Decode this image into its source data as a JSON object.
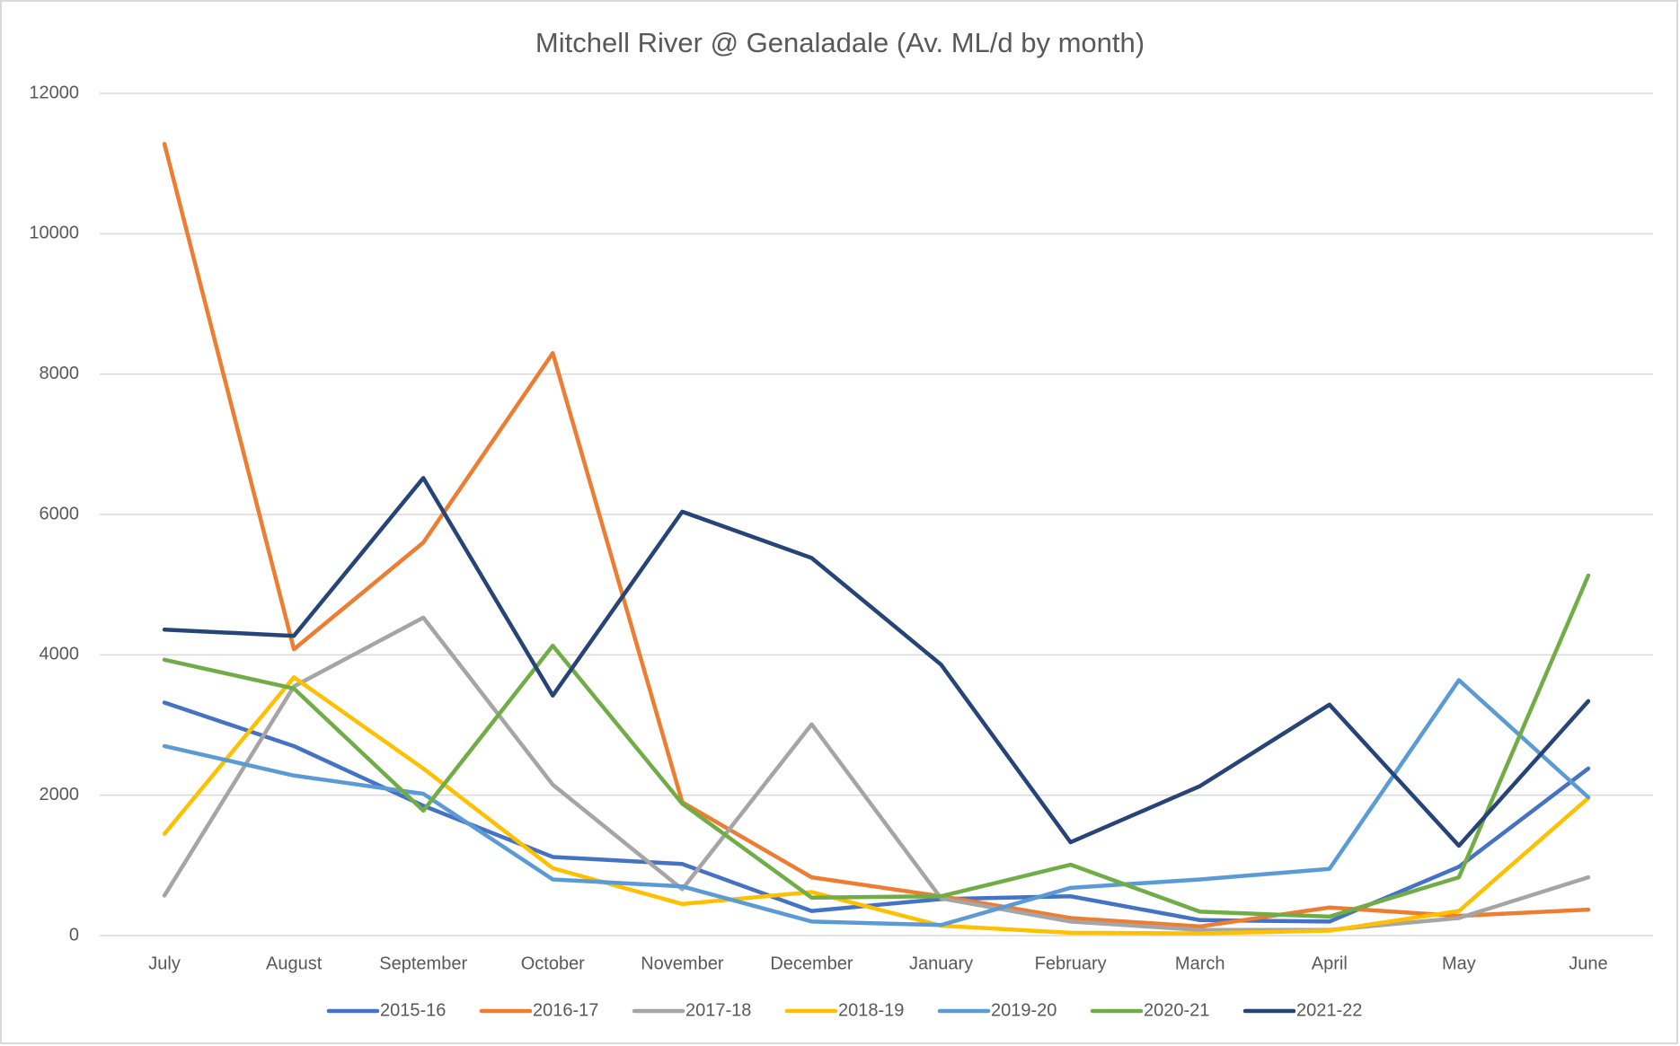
{
  "chart_data": {
    "type": "line",
    "title": "Mitchell River @ Genaladale (Av. ML/d by month)",
    "categories": [
      "July",
      "August",
      "September",
      "October",
      "November",
      "December",
      "January",
      "February",
      "March",
      "April",
      "May",
      "June"
    ],
    "series": [
      {
        "name": "2015-16",
        "color": "#4472c4",
        "values": [
          3320,
          2700,
          1850,
          1120,
          1020,
          350,
          520,
          560,
          220,
          200,
          980,
          2380
        ]
      },
      {
        "name": "2016-17",
        "color": "#ed7d31",
        "values": [
          11280,
          4080,
          5600,
          8300,
          1900,
          830,
          560,
          250,
          130,
          400,
          280,
          370
        ]
      },
      {
        "name": "2017-18",
        "color": "#a5a5a5",
        "values": [
          570,
          3550,
          4530,
          2150,
          660,
          3010,
          530,
          200,
          80,
          80,
          250,
          830
        ]
      },
      {
        "name": "2018-19",
        "color": "#ffc000",
        "values": [
          1450,
          3680,
          2380,
          960,
          450,
          620,
          140,
          40,
          30,
          70,
          350,
          1960
        ]
      },
      {
        "name": "2019-20",
        "color": "#5b9bd5",
        "values": [
          2700,
          2280,
          2020,
          800,
          700,
          200,
          150,
          680,
          800,
          950,
          3640,
          1970
        ]
      },
      {
        "name": "2020-21",
        "color": "#70ad47",
        "values": [
          3930,
          3520,
          1780,
          4130,
          1880,
          540,
          560,
          1010,
          340,
          270,
          830,
          5130
        ]
      },
      {
        "name": "2021-22",
        "color": "#264478",
        "values": [
          4360,
          4270,
          6520,
          3420,
          6040,
          5380,
          3860,
          1330,
          2130,
          3290,
          1280,
          3340
        ]
      }
    ],
    "ylim": [
      0,
      12000
    ],
    "yticks": [
      0,
      2000,
      4000,
      6000,
      8000,
      10000,
      12000
    ],
    "grid": true,
    "legend": "bottom"
  }
}
